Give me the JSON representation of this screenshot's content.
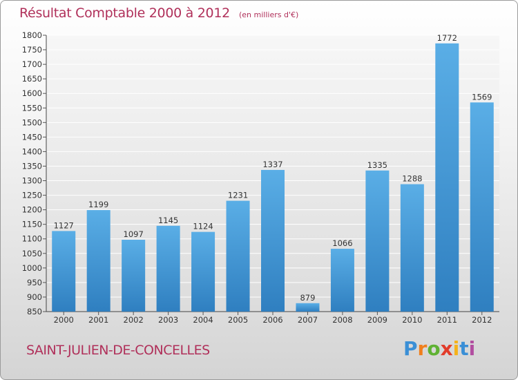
{
  "title": "Résultat Comptable 2000 à 2012",
  "subtitle": "(en milliers d'€)",
  "commune": "SAINT-JULIEN-DE-CONCELLES",
  "brand": [
    "P",
    "r",
    "o",
    "x",
    "i",
    "t",
    "i"
  ],
  "colors": {
    "title": "#b0305a",
    "bar_light": "#5aaee6",
    "bar_dark": "#2f7fc0",
    "grid": "#ffffff"
  },
  "chart_data": {
    "type": "bar",
    "title": "Résultat Comptable 2000 à 2012",
    "xlabel": "",
    "ylabel": "(en milliers d'€)",
    "categories": [
      "2000",
      "2001",
      "2002",
      "2003",
      "2004",
      "2005",
      "2006",
      "2007",
      "2008",
      "2009",
      "2010",
      "2011",
      "2012"
    ],
    "values": [
      1127,
      1199,
      1097,
      1145,
      1124,
      1231,
      1337,
      879,
      1066,
      1335,
      1288,
      1772,
      1569
    ],
    "ylim": [
      850,
      1800
    ],
    "ytick_step": 50,
    "grid": true
  }
}
